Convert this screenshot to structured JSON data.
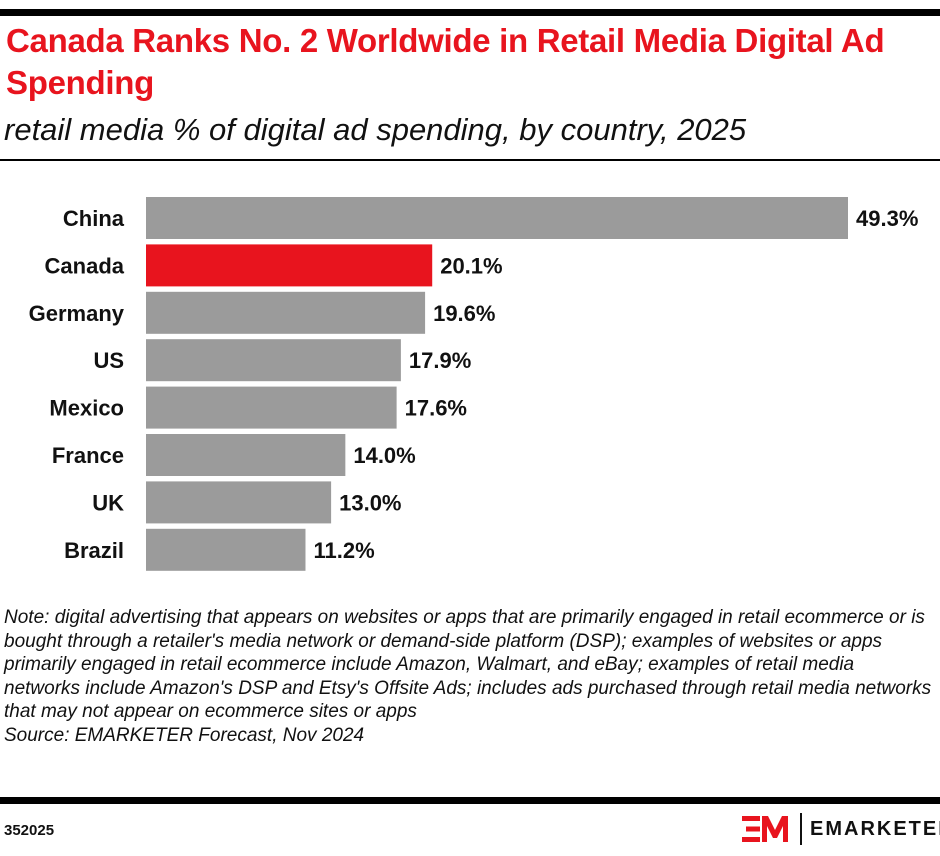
{
  "title": "Canada Ranks No. 2 Worldwide in Retail Media Digital Ad Spending",
  "subtitle": "retail media % of digital ad spending, by country, 2025",
  "chart_data": {
    "type": "bar",
    "orientation": "horizontal",
    "categories": [
      "China",
      "Canada",
      "Germany",
      "US",
      "Mexico",
      "France",
      "UK",
      "Brazil"
    ],
    "values": [
      49.3,
      20.1,
      19.6,
      17.9,
      17.6,
      14.0,
      13.0,
      11.2
    ],
    "data_labels": [
      "49.3%",
      "20.1%",
      "19.6%",
      "17.9%",
      "17.6%",
      "14.0%",
      "13.0%",
      "11.2%"
    ],
    "highlight": "Canada",
    "colors": {
      "default": "#9b9b9b",
      "highlight": "#e8141e"
    },
    "grid": false,
    "xlim": [
      0,
      49.3
    ]
  },
  "note": "Note: digital advertising that appears on websites or apps that are primarily engaged in retail ecommerce or is bought through a retailer's media network or demand-side platform (DSP); examples of websites or apps primarily engaged in retail ecommerce include Amazon, Walmart, and eBay; examples of retail media networks include Amazon's DSP and Etsy's Offsite Ads; includes ads purchased through retail media networks that may not appear on ecommerce sites or apps",
  "source": "Source: EMARKETER Forecast, Nov 2024",
  "footer": {
    "code": "352025",
    "brand": "EMARKETER",
    "logo_mark": "EM"
  }
}
